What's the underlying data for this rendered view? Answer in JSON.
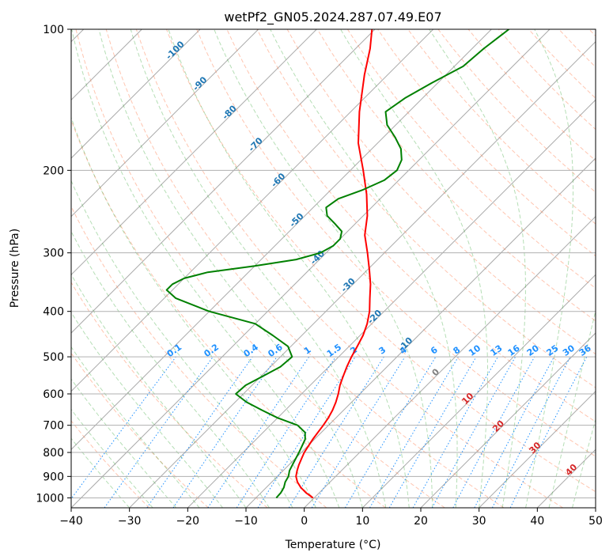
{
  "chart_data": {
    "type": "line",
    "subtype": "skew-T log-p thermodynamic diagram",
    "title": "wetPf2_GN05.2024.287.07.49.E07",
    "xlabel": "Temperature (°C)",
    "ylabel": "Pressure (hPa)",
    "xlim": [
      -40,
      50
    ],
    "ylim": [
      1050,
      100
    ],
    "y_scale": "log",
    "x_ticks": [
      -40,
      -30,
      -20,
      -10,
      0,
      10,
      20,
      30,
      40,
      50
    ],
    "x_tick_labels": [
      "−40",
      "−30",
      "−20",
      "−10",
      "0",
      "10",
      "20",
      "30",
      "40",
      "50"
    ],
    "y_ticks": [
      100,
      200,
      300,
      400,
      500,
      600,
      700,
      800,
      900,
      1000
    ],
    "y_tick_labels": [
      "100",
      "200",
      "300",
      "400",
      "500",
      "600",
      "700",
      "800",
      "900",
      "1000"
    ],
    "grid": true,
    "series": [
      {
        "id": "temperature",
        "color": "#ff0000",
        "points": [
          [
            1000,
            -0.2
          ],
          [
            975,
            -2.3
          ],
          [
            950,
            -4.1
          ],
          [
            925,
            -5.6
          ],
          [
            900,
            -6.8
          ],
          [
            875,
            -7.6
          ],
          [
            850,
            -8.3
          ],
          [
            825,
            -8.9
          ],
          [
            800,
            -9.5
          ],
          [
            775,
            -9.9
          ],
          [
            750,
            -10.3
          ],
          [
            725,
            -10.6
          ],
          [
            700,
            -10.9
          ],
          [
            675,
            -11.3
          ],
          [
            650,
            -11.9
          ],
          [
            625,
            -12.7
          ],
          [
            600,
            -13.7
          ],
          [
            575,
            -14.9
          ],
          [
            550,
            -15.9
          ],
          [
            525,
            -16.9
          ],
          [
            500,
            -17.8
          ],
          [
            475,
            -18.6
          ],
          [
            450,
            -19.5
          ],
          [
            425,
            -20.8
          ],
          [
            400,
            -22.5
          ],
          [
            375,
            -24.7
          ],
          [
            350,
            -27.0
          ],
          [
            325,
            -29.8
          ],
          [
            300,
            -32.9
          ],
          [
            275,
            -36.4
          ],
          [
            250,
            -39.3
          ],
          [
            225,
            -43.1
          ],
          [
            200,
            -47.8
          ],
          [
            175,
            -53.3
          ],
          [
            150,
            -58.5
          ],
          [
            125,
            -64.0
          ],
          [
            110,
            -67.5
          ],
          [
            100,
            -70.5
          ]
        ]
      },
      {
        "id": "dewpoint",
        "color": "#008000",
        "points": [
          [
            1000,
            -6.5
          ],
          [
            975,
            -6.6
          ],
          [
            950,
            -7.0
          ],
          [
            925,
            -7.7
          ],
          [
            900,
            -8.1
          ],
          [
            875,
            -8.9
          ],
          [
            850,
            -9.4
          ],
          [
            825,
            -9.9
          ],
          [
            800,
            -10.4
          ],
          [
            775,
            -11.0
          ],
          [
            750,
            -11.6
          ],
          [
            725,
            -12.8
          ],
          [
            700,
            -15.3
          ],
          [
            675,
            -20.0
          ],
          [
            650,
            -24.0
          ],
          [
            625,
            -28.0
          ],
          [
            600,
            -31.3
          ],
          [
            575,
            -31.1
          ],
          [
            550,
            -29.7
          ],
          [
            525,
            -28.3
          ],
          [
            500,
            -28.0
          ],
          [
            475,
            -30.5
          ],
          [
            450,
            -35.0
          ],
          [
            425,
            -40.0
          ],
          [
            400,
            -50.0
          ],
          [
            375,
            -58.0
          ],
          [
            360,
            -61.0
          ],
          [
            350,
            -61.0
          ],
          [
            340,
            -60.0
          ],
          [
            330,
            -57.0
          ],
          [
            320,
            -50.0
          ],
          [
            310,
            -44.0
          ],
          [
            300,
            -41.0
          ],
          [
            290,
            -40.0
          ],
          [
            280,
            -40.0
          ],
          [
            270,
            -41.0
          ],
          [
            260,
            -43.5
          ],
          [
            250,
            -46.2
          ],
          [
            240,
            -47.8
          ],
          [
            230,
            -47.2
          ],
          [
            220,
            -44.5
          ],
          [
            210,
            -42.5
          ],
          [
            200,
            -42.0
          ],
          [
            190,
            -43.0
          ],
          [
            180,
            -45.0
          ],
          [
            170,
            -48.0
          ],
          [
            160,
            -51.5
          ],
          [
            150,
            -54.0
          ],
          [
            140,
            -53.0
          ],
          [
            130,
            -51.0
          ],
          [
            120,
            -48.5
          ],
          [
            110,
            -48.0
          ],
          [
            100,
            -47.0
          ]
        ]
      }
    ],
    "background_lines": {
      "isotherms_color": "#aaaaaa",
      "dry_adiabats_color": "#ff7f50",
      "moist_adiabats_color": "#2ca02c",
      "mixing_ratio_color": "#1e90ff",
      "mixing_ratio_labels": [
        "0.1",
        "0.2",
        "0.4",
        "0.6",
        "1",
        "1.5",
        "2",
        "3",
        "4",
        "6",
        "8",
        "10",
        "13",
        "16",
        "20",
        "25",
        "30",
        "36"
      ],
      "mixing_ratio_values": [
        0.1,
        0.2,
        0.4,
        0.6,
        1,
        1.5,
        2,
        3,
        4,
        6,
        8,
        10,
        13,
        16,
        20,
        25,
        30,
        36
      ],
      "isotherm_labels_blue": [
        "-100",
        "-90",
        "-80",
        "-70",
        "-60",
        "-50",
        "-40",
        "-30",
        "-20",
        "-10"
      ],
      "isotherm_label_values_blue": [
        -100,
        -90,
        -80,
        -70,
        -60,
        -50,
        -40,
        -30,
        -20,
        -10
      ],
      "isotherm_labels_red": [
        "10",
        "20",
        "30",
        "40"
      ],
      "isotherm_label_values_red": [
        10,
        20,
        30,
        40
      ],
      "zero_label": "0"
    }
  }
}
